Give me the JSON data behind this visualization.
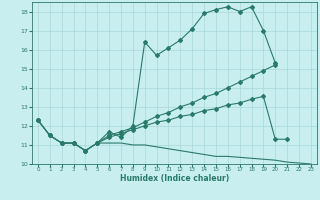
{
  "xlabel": "Humidex (Indice chaleur)",
  "xlim": [
    -0.5,
    23.5
  ],
  "ylim": [
    10,
    18.5
  ],
  "yticks": [
    10,
    11,
    12,
    13,
    14,
    15,
    16,
    17,
    18
  ],
  "xticks": [
    0,
    1,
    2,
    3,
    4,
    5,
    6,
    7,
    8,
    9,
    10,
    11,
    12,
    13,
    14,
    15,
    16,
    17,
    18,
    19,
    20,
    21,
    22,
    23
  ],
  "bg_color": "#c8eef0",
  "grid_color": "#a8d8da",
  "line_color": "#2a7a6a",
  "line1_x": [
    0,
    1,
    2,
    3,
    4,
    5,
    6,
    7,
    8,
    9,
    10,
    11,
    12,
    13,
    14,
    15,
    16,
    17,
    18,
    19,
    20,
    21,
    22,
    23
  ],
  "line1_y": [
    12.3,
    11.5,
    11.1,
    11.1,
    10.7,
    11.1,
    11.7,
    11.4,
    12.0,
    16.4,
    15.7,
    16.1,
    16.5,
    17.1,
    17.9,
    18.1,
    18.25,
    18.0,
    18.25,
    17.0,
    15.3,
    null,
    null,
    null
  ],
  "line2_x": [
    0,
    1,
    2,
    3,
    4,
    5,
    6,
    7,
    8,
    9,
    10,
    11,
    12,
    13,
    14,
    15,
    16,
    17,
    18,
    19,
    20
  ],
  "line2_y": [
    12.3,
    11.5,
    11.1,
    11.1,
    10.7,
    11.1,
    11.5,
    11.7,
    11.9,
    12.2,
    12.5,
    12.7,
    13.0,
    13.2,
    13.5,
    13.7,
    14.0,
    14.3,
    14.6,
    14.9,
    15.2
  ],
  "line3_x": [
    0,
    1,
    2,
    3,
    4,
    5,
    6,
    7,
    8,
    9,
    10,
    11,
    12,
    13,
    14,
    15,
    16,
    17,
    18,
    19,
    20,
    21
  ],
  "line3_y": [
    12.3,
    11.5,
    11.1,
    11.1,
    10.7,
    11.1,
    11.4,
    11.6,
    11.8,
    12.0,
    12.2,
    12.3,
    12.5,
    12.6,
    12.8,
    12.9,
    13.1,
    13.2,
    13.4,
    13.55,
    11.3,
    11.3
  ],
  "line4_x": [
    5,
    6,
    7,
    8,
    9,
    10,
    11,
    12,
    13,
    14,
    15,
    16,
    17,
    18,
    19,
    20,
    21,
    22,
    23
  ],
  "line4_y": [
    11.1,
    11.1,
    11.1,
    11.0,
    11.0,
    10.9,
    10.8,
    10.7,
    10.6,
    10.5,
    10.4,
    10.4,
    10.35,
    10.3,
    10.25,
    10.2,
    10.1,
    10.05,
    10.0
  ]
}
